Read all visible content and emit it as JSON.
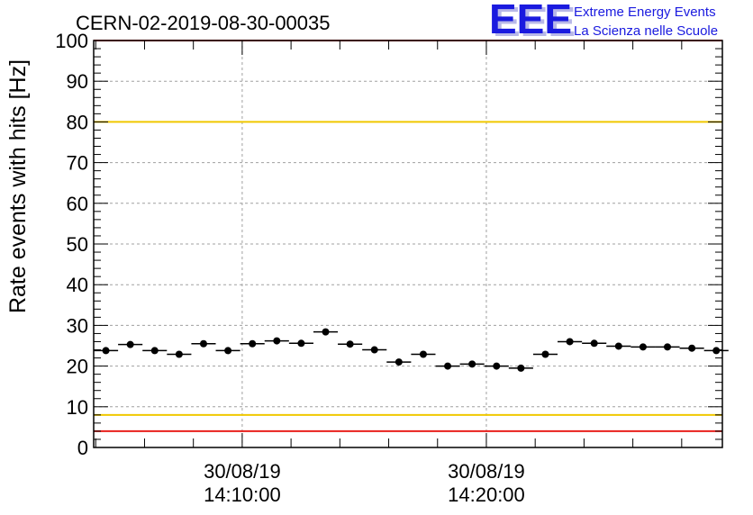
{
  "chart_data": {
    "type": "scatter",
    "title": "CERN-02-2019-08-30-00035",
    "ylabel": "Rate events with hits [Hz]",
    "xlabel": "",
    "ylim": [
      0,
      100
    ],
    "yticks": [
      0,
      10,
      20,
      30,
      40,
      50,
      60,
      70,
      80,
      90,
      100
    ],
    "xlim": [
      "2019-08-30 14:03:55",
      "2019-08-30 14:29:40"
    ],
    "x_tick_labels": [
      {
        "x": "2019-08-30 14:10:00",
        "date": "30/08/19",
        "time": "14:10:00"
      },
      {
        "x": "2019-08-30 14:20:00",
        "date": "30/08/19",
        "time": "14:20:00"
      }
    ],
    "grid": true,
    "bin_width_seconds": 60,
    "series": [
      {
        "x": [
          "2019-08-30 14:04:25",
          "2019-08-30 14:05:25",
          "2019-08-30 14:06:25",
          "2019-08-30 14:07:25",
          "2019-08-30 14:08:25",
          "2019-08-30 14:09:25",
          "2019-08-30 14:10:25",
          "2019-08-30 14:11:25",
          "2019-08-30 14:12:25",
          "2019-08-30 14:13:25",
          "2019-08-30 14:14:25",
          "2019-08-30 14:15:25",
          "2019-08-30 14:16:25",
          "2019-08-30 14:17:25",
          "2019-08-30 14:18:25",
          "2019-08-30 14:19:25",
          "2019-08-30 14:20:25",
          "2019-08-30 14:21:25",
          "2019-08-30 14:22:25",
          "2019-08-30 14:23:25",
          "2019-08-30 14:24:25",
          "2019-08-30 14:25:25",
          "2019-08-30 14:26:25",
          "2019-08-30 14:27:25",
          "2019-08-30 14:28:25",
          "2019-08-30 14:29:25"
        ],
        "y": [
          23.8,
          25.3,
          23.8,
          22.9,
          25.5,
          23.8,
          25.5,
          26.2,
          25.6,
          28.4,
          25.4,
          24.0,
          21.0,
          22.9,
          20.0,
          20.5,
          20.0,
          19.5,
          22.9,
          26.0,
          25.6,
          24.9,
          24.7,
          24.7,
          24.4,
          23.8
        ]
      }
    ],
    "reference_lines": [
      {
        "y": 100,
        "color": "#e8201c"
      },
      {
        "y": 80,
        "color": "#f0c800"
      },
      {
        "y": 8,
        "color": "#f0c800"
      },
      {
        "y": 4,
        "color": "#e8201c"
      }
    ],
    "marker_color": "#000000"
  },
  "logo": {
    "mark": "EEE",
    "line1": "Extreme Energy Events",
    "line2": "La Scienza nelle Scuole",
    "color": "#1a1adf"
  }
}
